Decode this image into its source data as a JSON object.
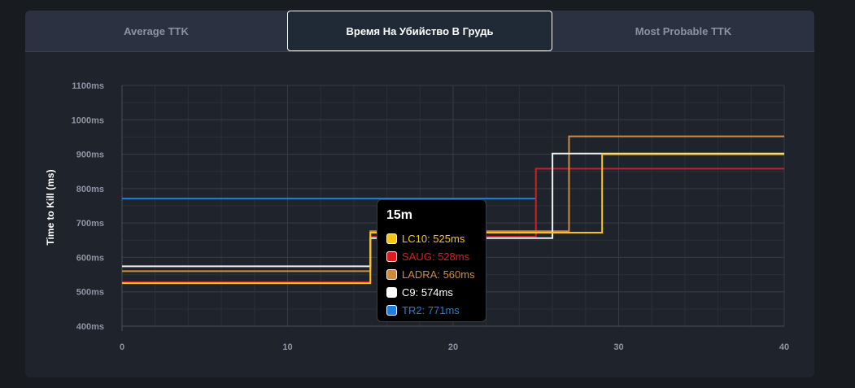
{
  "tabs": [
    {
      "label": "Average TTK",
      "active": false
    },
    {
      "label": "Время На Убийство В Грудь",
      "active": true
    },
    {
      "label": "Most Probable TTK",
      "active": false
    }
  ],
  "chart_data": {
    "type": "line",
    "step": true,
    "ylabel": "Time to Kill (ms)",
    "xlim": [
      0,
      40
    ],
    "ylim": [
      400,
      1100
    ],
    "xticks": [
      0,
      10,
      20,
      30,
      40
    ],
    "yticks": [
      400,
      500,
      600,
      700,
      800,
      900,
      1000,
      1100
    ],
    "ytick_labels": [
      "400ms",
      "500ms",
      "600ms",
      "700ms",
      "800ms",
      "900ms",
      "1000ms",
      "1100ms"
    ],
    "grid": true,
    "series": [
      {
        "name": "TR2",
        "color": "#1e7fe0",
        "x": [
          0,
          25
        ],
        "y": [
          771,
          771
        ]
      },
      {
        "name": "SAUG",
        "color": "#cc1f26",
        "x": [
          0,
          15,
          25,
          40
        ],
        "y": [
          528,
          660,
          858,
          858
        ]
      },
      {
        "name": "LADRA",
        "color": "#d08a3c",
        "x": [
          0,
          15,
          27,
          40
        ],
        "y": [
          560,
          676,
          952,
          952
        ]
      },
      {
        "name": "C9",
        "color": "#f0f0f0",
        "x": [
          0,
          15,
          26,
          40
        ],
        "y": [
          574,
          656,
          902,
          902
        ]
      },
      {
        "name": "LC10",
        "color": "#f5c518",
        "x": [
          0,
          15,
          29,
          40
        ],
        "y": [
          525,
          672,
          900,
          900
        ]
      }
    ],
    "tooltip": {
      "title": "15m",
      "items": [
        {
          "label": "LC10: 525ms",
          "color": "#f5c518"
        },
        {
          "label": "SAUG: 528ms",
          "color": "#e01b1b"
        },
        {
          "label": "LADRA: 560ms",
          "color": "#d08a3c"
        },
        {
          "label": "C9: 574ms",
          "color": "#ffffff"
        },
        {
          "label": "TR2: 771ms",
          "color": "#1e7fe0"
        }
      ]
    }
  }
}
